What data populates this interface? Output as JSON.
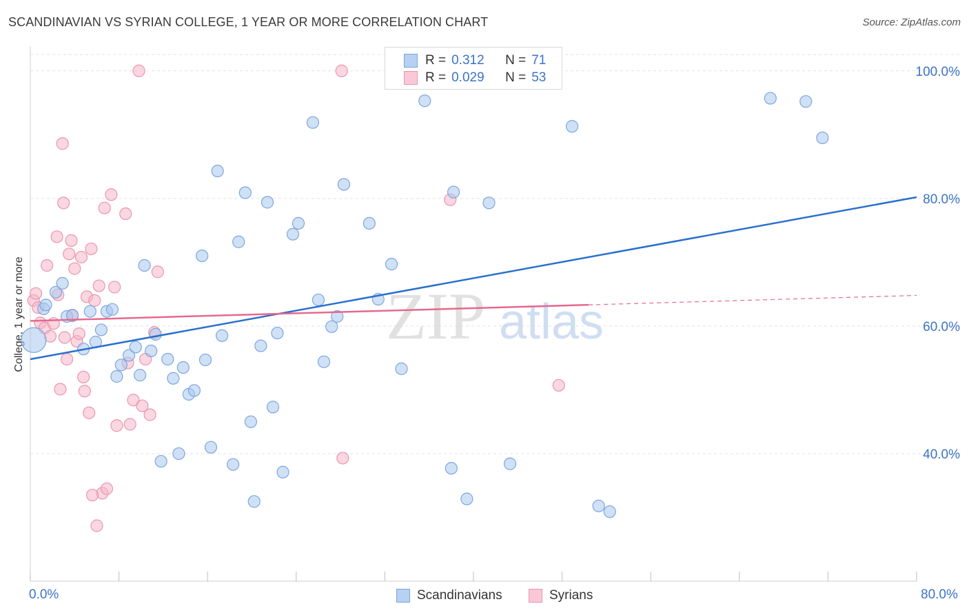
{
  "header": {
    "title": "SCANDINAVIAN VS SYRIAN COLLEGE, 1 YEAR OR MORE CORRELATION CHART",
    "source": "Source: ZipAtlas.com"
  },
  "stats": {
    "rows": [
      {
        "r_label": "R =",
        "r_value": "0.312",
        "n_label": "N =",
        "n_value": "71"
      },
      {
        "r_label": "R =",
        "r_value": "0.029",
        "n_label": "N =",
        "n_value": "53"
      }
    ]
  },
  "legend": {
    "items": [
      "Scandinavians",
      "Syrians"
    ]
  },
  "watermark": {
    "zip": "ZIP",
    "atlas": "atlas"
  },
  "colors": {
    "blue_fill": "#a9c8ee",
    "blue_stroke": "#7ba6de",
    "blue_line": "#2a6fce",
    "pink_fill": "#f5b6c9",
    "pink_stroke": "#ea95b0",
    "pink_line": "#e5698f",
    "accent_text": "#3b73c6",
    "grid": "#e2e2e2"
  },
  "chart_data": {
    "type": "scatter",
    "title": "SCANDINAVIAN VS SYRIAN COLLEGE, 1 YEAR OR MORE CORRELATION CHART",
    "xlabel": "",
    "ylabel": "College, 1 year or more",
    "xlim": [
      0,
      80
    ],
    "ylim": [
      20,
      103
    ],
    "x_tick_labels": [
      "0.0%",
      "80.0%"
    ],
    "y_ticks": [
      40,
      60,
      80,
      100
    ],
    "y_tick_labels": [
      "40.0%",
      "60.0%",
      "80.0%",
      "100.0%"
    ],
    "grid": true,
    "legend_position": "bottom-center",
    "series": [
      {
        "name": "Scandinavians",
        "r": 0.312,
        "n": 71,
        "trend": {
          "x": [
            0,
            80
          ],
          "y": [
            54.8,
            80.2
          ],
          "dashed_from": null
        },
        "points": [
          [
            0.3,
            57.8,
            "big"
          ],
          [
            1.2,
            62.7
          ],
          [
            1.4,
            63.3
          ],
          [
            2.3,
            65.3
          ],
          [
            2.9,
            66.7
          ],
          [
            3.3,
            61.5
          ],
          [
            3.8,
            61.7
          ],
          [
            4.8,
            56.4
          ],
          [
            5.4,
            62.3
          ],
          [
            5.9,
            57.5
          ],
          [
            6.4,
            59.4
          ],
          [
            6.9,
            62.3
          ],
          [
            7.4,
            62.6
          ],
          [
            7.8,
            52.1
          ],
          [
            8.2,
            53.9
          ],
          [
            8.9,
            55.4
          ],
          [
            9.5,
            56.7
          ],
          [
            9.9,
            52.3
          ],
          [
            10.3,
            69.5
          ],
          [
            10.9,
            56.1
          ],
          [
            11.3,
            58.7
          ],
          [
            11.8,
            38.8
          ],
          [
            12.4,
            54.8
          ],
          [
            12.9,
            51.8
          ],
          [
            13.4,
            40.0
          ],
          [
            13.8,
            53.5
          ],
          [
            14.3,
            49.3
          ],
          [
            14.8,
            49.9
          ],
          [
            15.5,
            71.0
          ],
          [
            15.8,
            54.7
          ],
          [
            16.3,
            41.0
          ],
          [
            16.9,
            84.3
          ],
          [
            17.3,
            58.5
          ],
          [
            18.3,
            38.3
          ],
          [
            18.8,
            73.2
          ],
          [
            19.4,
            80.9
          ],
          [
            19.9,
            45.0
          ],
          [
            20.2,
            32.5
          ],
          [
            20.8,
            56.9
          ],
          [
            21.4,
            79.4
          ],
          [
            21.9,
            47.3
          ],
          [
            22.3,
            58.9
          ],
          [
            22.8,
            37.1
          ],
          [
            23.7,
            74.4
          ],
          [
            24.2,
            76.1
          ],
          [
            25.5,
            91.9
          ],
          [
            26.0,
            64.1
          ],
          [
            26.5,
            54.4
          ],
          [
            27.2,
            59.9
          ],
          [
            27.7,
            61.5
          ],
          [
            28.3,
            82.2
          ],
          [
            30.6,
            76.1
          ],
          [
            31.4,
            64.2
          ],
          [
            32.6,
            69.7
          ],
          [
            33.5,
            53.3
          ],
          [
            35.6,
            95.3
          ],
          [
            38.0,
            37.7
          ],
          [
            38.2,
            81.0
          ],
          [
            39.4,
            32.9
          ],
          [
            41.4,
            79.3
          ],
          [
            43.3,
            38.4
          ],
          [
            47.3,
            99.9
          ],
          [
            48.9,
            91.3
          ],
          [
            51.3,
            31.8
          ],
          [
            52.3,
            30.9
          ],
          [
            66.8,
            95.7
          ],
          [
            70.0,
            95.2
          ],
          [
            71.5,
            89.5
          ]
        ]
      },
      {
        "name": "Syrians",
        "r": 0.029,
        "n": 53,
        "trend": {
          "x": [
            0,
            80
          ],
          "y": [
            60.8,
            64.8
          ],
          "dashed_from": 50.4
        },
        "points": [
          [
            0.3,
            64.0
          ],
          [
            0.5,
            65.1
          ],
          [
            0.7,
            62.9
          ],
          [
            0.9,
            60.5
          ],
          [
            1.3,
            59.7
          ],
          [
            1.5,
            69.5
          ],
          [
            1.8,
            58.4
          ],
          [
            2.1,
            60.4
          ],
          [
            2.4,
            74.0
          ],
          [
            2.5,
            64.9
          ],
          [
            2.7,
            50.1
          ],
          [
            2.9,
            88.6
          ],
          [
            3.0,
            79.3
          ],
          [
            3.1,
            58.2
          ],
          [
            3.3,
            54.8
          ],
          [
            3.5,
            71.3
          ],
          [
            3.7,
            73.4
          ],
          [
            3.8,
            61.6
          ],
          [
            4.0,
            69.0
          ],
          [
            4.2,
            57.6
          ],
          [
            4.4,
            58.8
          ],
          [
            4.6,
            70.8
          ],
          [
            4.8,
            52.0
          ],
          [
            4.9,
            49.8
          ],
          [
            5.1,
            64.6
          ],
          [
            5.3,
            46.4
          ],
          [
            5.5,
            72.1
          ],
          [
            5.8,
            64.0
          ],
          [
            6.0,
            28.7
          ],
          [
            6.2,
            66.3
          ],
          [
            6.5,
            33.8
          ],
          [
            6.7,
            78.5
          ],
          [
            6.9,
            34.5
          ],
          [
            7.3,
            80.6
          ],
          [
            7.6,
            66.1
          ],
          [
            7.8,
            44.4
          ],
          [
            8.6,
            77.6
          ],
          [
            8.8,
            54.2
          ],
          [
            9.0,
            44.6
          ],
          [
            9.3,
            48.4
          ],
          [
            9.8,
            100.0
          ],
          [
            10.1,
            47.5
          ],
          [
            10.4,
            54.8
          ],
          [
            10.8,
            46.1
          ],
          [
            11.2,
            59.0
          ],
          [
            11.5,
            68.5
          ],
          [
            5.6,
            33.5
          ],
          [
            28.1,
            100.0
          ],
          [
            28.2,
            39.3
          ],
          [
            37.9,
            79.8
          ],
          [
            47.7,
            50.7
          ]
        ]
      }
    ]
  }
}
